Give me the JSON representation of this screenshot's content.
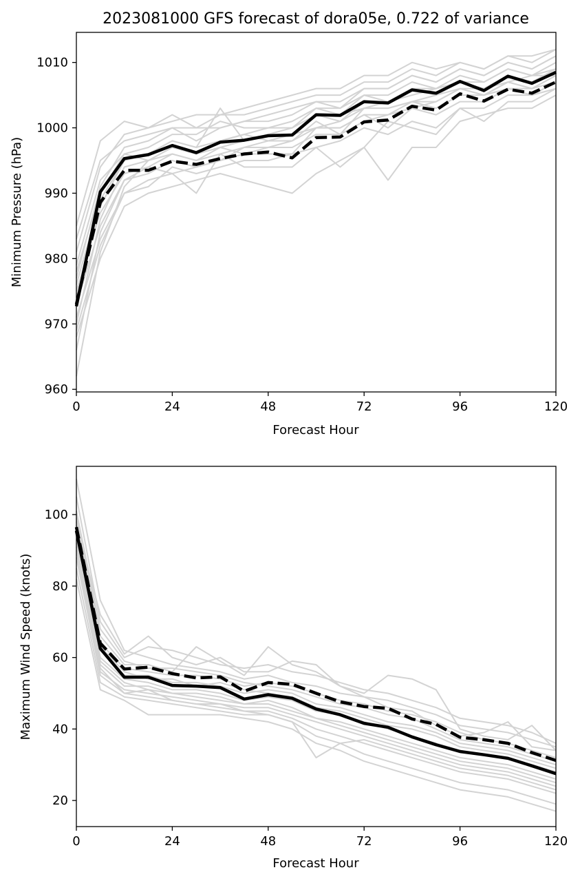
{
  "figure_title": "2023081000 GFS forecast of dora05e, 0.722 of variance",
  "colors": {
    "ensemble": "#d3d3d3",
    "mean": "#000000",
    "dashed": "#000000"
  },
  "chart_data": [
    {
      "type": "line",
      "title": "2023081000 GFS forecast of dora05e, 0.722 of variance",
      "xlabel": "Forecast Hour",
      "ylabel": "Minimum Pressure (hPa)",
      "xlim": [
        0,
        120
      ],
      "ylim": [
        959.6,
        1014.6
      ],
      "xticks": [
        0,
        24,
        48,
        72,
        96,
        120
      ],
      "yticks": [
        960,
        970,
        980,
        990,
        1000,
        1010
      ],
      "grid": false,
      "x": [
        0,
        6,
        12,
        18,
        24,
        30,
        36,
        42,
        48,
        54,
        60,
        66,
        72,
        78,
        84,
        90,
        96,
        102,
        108,
        114,
        120
      ],
      "series": [
        {
          "style": "solid",
          "values": [
            972.7,
            990.2,
            995.3,
            995.9,
            997.3,
            996.2,
            997.8,
            998.1,
            998.8,
            998.9,
            1002.0,
            1001.9,
            1004.0,
            1003.8,
            1005.8,
            1005.3,
            1007.1,
            1005.7,
            1007.9,
            1006.8,
            1008.5
          ]
        },
        {
          "style": "dashed",
          "values": [
            973.0,
            988.6,
            993.5,
            993.5,
            994.9,
            994.4,
            995.3,
            996.0,
            996.3,
            995.4,
            998.5,
            998.6,
            1000.9,
            1001.2,
            1003.3,
            1002.7,
            1005.2,
            1004.1,
            1005.9,
            1005.3,
            1007.0
          ]
        },
        {
          "style": "ensemble",
          "values": [
            962,
            981,
            991,
            995,
            996,
            995,
            996,
            997,
            998,
            999,
            1000,
            1001,
            1003,
            1003,
            1004,
            1004,
            1006,
            1005,
            1007,
            1006,
            1008
          ]
        },
        {
          "style": "ensemble",
          "values": [
            966,
            984,
            992,
            993,
            995,
            994,
            995,
            997,
            997,
            998,
            1000,
            1000,
            1002,
            1002,
            1004,
            1003,
            1005,
            1005,
            1006,
            1006,
            1007
          ]
        },
        {
          "style": "ensemble",
          "values": [
            970,
            986,
            994,
            995,
            997,
            996,
            997,
            998,
            999,
            1000,
            1002,
            1001,
            1004,
            1004,
            1006,
            1005,
            1007,
            1006,
            1008,
            1007,
            1009
          ]
        },
        {
          "style": "ensemble",
          "values": [
            974,
            988,
            995,
            996,
            998,
            997,
            998,
            999,
            1000,
            1000,
            1003,
            1002,
            1005,
            1005,
            1007,
            1006,
            1008,
            1007,
            1009,
            1008,
            1010
          ]
        },
        {
          "style": "ensemble",
          "values": [
            977,
            991,
            997,
            998,
            1000,
            998,
            1000,
            1001,
            1001,
            1002,
            1004,
            1003,
            1006,
            1006,
            1008,
            1007,
            1009,
            1008,
            1010,
            1009,
            1011
          ]
        },
        {
          "style": "ensemble",
          "values": [
            981,
            994,
            999,
            1000,
            1002,
            1000,
            1002,
            1002,
            1003,
            1004,
            1005,
            1005,
            1007,
            1007,
            1009,
            1008,
            1010,
            1009,
            1011,
            1010,
            1012
          ]
        },
        {
          "style": "ensemble",
          "values": [
            985,
            998,
            1001,
            1000,
            1001,
            1002,
            1002,
            1003,
            1004,
            1005,
            1006,
            1006,
            1008,
            1008,
            1010,
            1009,
            1010,
            1009,
            1011,
            1011,
            1012
          ]
        },
        {
          "style": "ensemble",
          "values": [
            968,
            980,
            988,
            990,
            991,
            992,
            993,
            992,
            991,
            990,
            993,
            995,
            997,
            992,
            997,
            997,
            1001,
            1002,
            1003,
            1003,
            1005
          ]
        },
        {
          "style": "ensemble",
          "values": [
            971,
            983,
            990,
            992,
            993,
            990,
            996,
            994,
            994,
            994,
            997,
            994,
            997,
            1001,
            1000,
            999,
            1003,
            1001,
            1004,
            1004,
            1006
          ]
        },
        {
          "style": "ensemble",
          "values": [
            975,
            987,
            993,
            994,
            996,
            995,
            997,
            996,
            997,
            997,
            999,
            999,
            1001,
            1002,
            1003,
            1002,
            1004,
            1004,
            1006,
            1005,
            1007
          ]
        },
        {
          "style": "ensemble",
          "values": [
            979,
            992,
            996,
            997,
            999,
            999,
            1001,
            1000,
            1000,
            1001,
            1003,
            1003,
            1005,
            1004,
            1006,
            1006,
            1007,
            1007,
            1009,
            1008,
            1009
          ]
        },
        {
          "style": "ensemble",
          "values": [
            973,
            985,
            992,
            994,
            993,
            994,
            995,
            996,
            996,
            996,
            1000,
            1000,
            1002,
            1000,
            1003,
            1004,
            1006,
            1005,
            1007,
            1006,
            1008
          ]
        },
        {
          "style": "ensemble",
          "values": [
            976,
            989,
            995,
            996,
            998,
            997,
            1003,
            998,
            999,
            999,
            1002,
            1002,
            1003,
            1004,
            1005,
            1006,
            1007,
            1006,
            1008,
            1007,
            1009
          ]
        },
        {
          "style": "ensemble",
          "values": [
            969,
            982,
            990,
            991,
            994,
            993,
            994,
            995,
            995,
            996,
            997,
            998,
            1000,
            999,
            1001,
            1000,
            1003,
            1003,
            1005,
            1005,
            1006
          ]
        },
        {
          "style": "ensemble",
          "values": [
            983,
            995,
            998,
            999,
            1000,
            1000,
            1000,
            1001,
            1002,
            1003,
            1004,
            1004,
            1006,
            1006,
            1008,
            1007,
            1009,
            1008,
            1010,
            1009,
            1011
          ]
        },
        {
          "style": "ensemble",
          "values": [
            978,
            990,
            996,
            995,
            997,
            996,
            998,
            999,
            998,
            998,
            1001,
            999,
            1003,
            1003,
            1004,
            1005,
            1006,
            1006,
            1007,
            1008,
            1008
          ]
        }
      ]
    },
    {
      "type": "line",
      "title": "",
      "xlabel": "Forecast Hour",
      "ylabel": "Maximum Wind Speed (knots)",
      "xlim": [
        0,
        120
      ],
      "ylim": [
        12.7,
        113.5
      ],
      "xticks": [
        0,
        24,
        48,
        72,
        96,
        120
      ],
      "yticks": [
        20,
        40,
        60,
        80,
        100
      ],
      "grid": false,
      "x": [
        0,
        6,
        12,
        18,
        24,
        30,
        36,
        42,
        48,
        54,
        60,
        66,
        72,
        78,
        84,
        90,
        96,
        102,
        108,
        114,
        120
      ],
      "series": [
        {
          "style": "solid",
          "values": [
            95.5,
            62.5,
            54.5,
            54.5,
            52.2,
            52.0,
            51.6,
            48.4,
            49.6,
            48.6,
            45.6,
            44.0,
            41.6,
            40.5,
            37.8,
            35.6,
            33.7,
            32.8,
            31.8,
            29.7,
            27.5
          ]
        },
        {
          "style": "dashed",
          "values": [
            96.5,
            64.0,
            56.8,
            57.3,
            55.5,
            54.3,
            54.6,
            50.6,
            53.0,
            52.5,
            50.0,
            47.6,
            46.3,
            45.8,
            42.8,
            41.3,
            37.7,
            37.0,
            36.0,
            33.4,
            31.2
          ]
        },
        {
          "style": "ensemble",
          "values": [
            110,
            76,
            62,
            60,
            58,
            57,
            56,
            54,
            55,
            53,
            52,
            50,
            49,
            48,
            46,
            44,
            41,
            40,
            39,
            37,
            35
          ]
        },
        {
          "style": "ensemble",
          "values": [
            105,
            70,
            60,
            63,
            62,
            60,
            58,
            57,
            58,
            56,
            55,
            53,
            51,
            50,
            48,
            46,
            43,
            42,
            41,
            39,
            36
          ]
        },
        {
          "style": "ensemble",
          "values": [
            100,
            66,
            58,
            58,
            56,
            63,
            59,
            55,
            63,
            58,
            56,
            52,
            50,
            55,
            54,
            51,
            40,
            38,
            37,
            41,
            34
          ]
        },
        {
          "style": "ensemble",
          "values": [
            98,
            64,
            57,
            56,
            55,
            55,
            54,
            52,
            53,
            52,
            50,
            48,
            47,
            45,
            44,
            42,
            39,
            37,
            36,
            34,
            32
          ]
        },
        {
          "style": "ensemble",
          "values": [
            96,
            62,
            55,
            55,
            53,
            53,
            52,
            50,
            51,
            50,
            47,
            46,
            44,
            42,
            41,
            39,
            36,
            35,
            34,
            32,
            30
          ]
        },
        {
          "style": "ensemble",
          "values": [
            94,
            60,
            54,
            53,
            51,
            51,
            50,
            48,
            49,
            48,
            45,
            44,
            42,
            40,
            38,
            36,
            34,
            33,
            32,
            30,
            28
          ]
        },
        {
          "style": "ensemble",
          "values": [
            92,
            58,
            52,
            52,
            50,
            50,
            49,
            47,
            48,
            46,
            43,
            42,
            40,
            38,
            36,
            34,
            32,
            31,
            30,
            28,
            26
          ]
        },
        {
          "style": "ensemble",
          "values": [
            90,
            56,
            51,
            50,
            49,
            48,
            47,
            46,
            46,
            44,
            42,
            40,
            38,
            36,
            34,
            32,
            30,
            29,
            28,
            26,
            24
          ]
        },
        {
          "style": "ensemble",
          "values": [
            88,
            55,
            50,
            49,
            48,
            47,
            46,
            45,
            45,
            43,
            40,
            38,
            36,
            34,
            32,
            30,
            28,
            27,
            26,
            24,
            22
          ]
        },
        {
          "style": "ensemble",
          "values": [
            85,
            53,
            49,
            48,
            47,
            46,
            45,
            44,
            44,
            42,
            38,
            36,
            33,
            31,
            29,
            27,
            25,
            24,
            23,
            21,
            19
          ]
        },
        {
          "style": "ensemble",
          "values": [
            82,
            51,
            48,
            44,
            44,
            44,
            44,
            43,
            42,
            40,
            36,
            34,
            31,
            29,
            27,
            25,
            23,
            22,
            21,
            19,
            17
          ]
        },
        {
          "style": "ensemble",
          "values": [
            97,
            72,
            61,
            66,
            60,
            58,
            60,
            56,
            56,
            59,
            58,
            52,
            49,
            46,
            45,
            41,
            38,
            39,
            42,
            35,
            34
          ]
        },
        {
          "style": "ensemble",
          "values": [
            101,
            68,
            59,
            57,
            57,
            56,
            55,
            53,
            52,
            51,
            49,
            47,
            46,
            44,
            43,
            40,
            37,
            36,
            35,
            33,
            31
          ]
        },
        {
          "style": "ensemble",
          "values": [
            93,
            59,
            53,
            51,
            50,
            49,
            48,
            47,
            47,
            45,
            43,
            41,
            39,
            37,
            35,
            33,
            31,
            30,
            29,
            27,
            25
          ]
        },
        {
          "style": "ensemble",
          "values": [
            99,
            63,
            56,
            54,
            54,
            52,
            53,
            51,
            50,
            49,
            46,
            45,
            43,
            41,
            40,
            38,
            35,
            34,
            33,
            31,
            29
          ]
        },
        {
          "style": "ensemble",
          "values": [
            91,
            57,
            50,
            51,
            48,
            47,
            47,
            45,
            44,
            42,
            32,
            36,
            37,
            35,
            33,
            31,
            29,
            28,
            27,
            25,
            23
          ]
        }
      ]
    }
  ]
}
